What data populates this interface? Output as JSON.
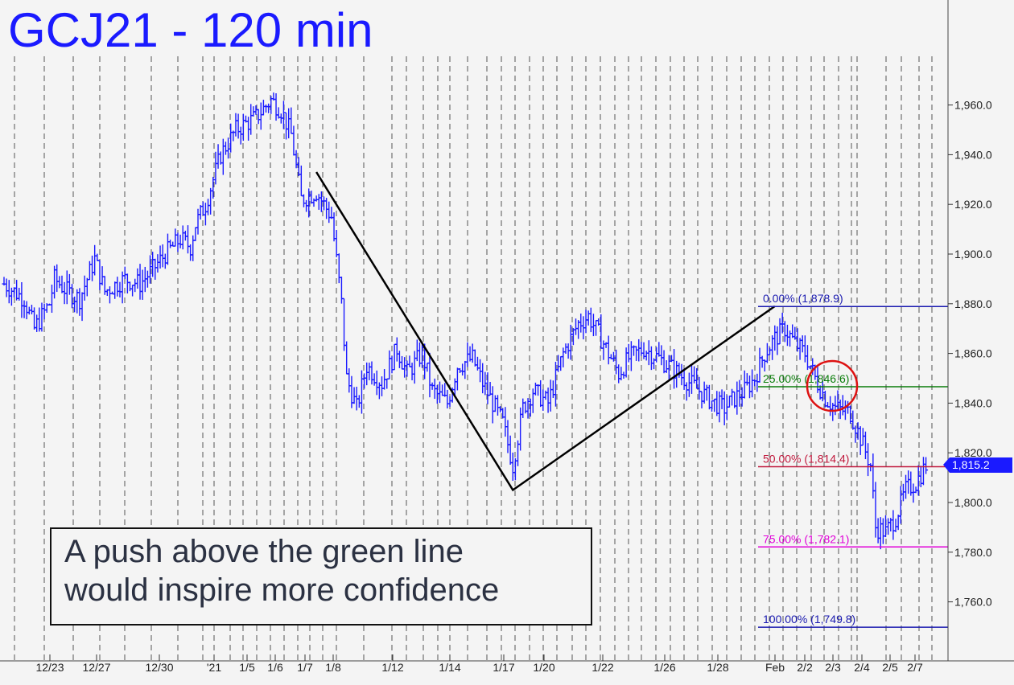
{
  "title": "GCJ21 - 120 min",
  "annotation": {
    "line1": "A push above the green line",
    "line2": "would inspire more confidence"
  },
  "last_price_label": "1,815.2",
  "chart_data": {
    "type": "ohlc_bar",
    "symbol": "GCJ21",
    "interval": "120 min",
    "ylim": [
      1745,
      1972
    ],
    "y_ticks": [
      1760,
      1780,
      1800,
      1820,
      1840,
      1860,
      1880,
      1900,
      1920,
      1940,
      1960
    ],
    "y_tick_labels": [
      "1,760.0",
      "1,780.0",
      "1,800.0",
      "1,820.0",
      "1,840.0",
      "1,860.0",
      "1,880.0",
      "1,900.0",
      "1,920.0",
      "1,940.0",
      "1,960.0"
    ],
    "x_tick_labels": [
      "12/23",
      "12/27",
      "12/30",
      "'21",
      "1/5",
      "1/6",
      "1/7",
      "1/8",
      "1/12",
      "1/14",
      "1/17",
      "1/20",
      "1/22",
      "1/26",
      "1/28",
      "Feb",
      "2/2",
      "2/3",
      "2/4",
      "2/5",
      "2/7"
    ],
    "price_path": [
      [
        0,
        1888
      ],
      [
        8,
        1882
      ],
      [
        12,
        1870
      ],
      [
        18,
        1880
      ],
      [
        20,
        1890
      ],
      [
        25,
        1885
      ],
      [
        30,
        1882
      ],
      [
        36,
        1898
      ],
      [
        40,
        1885
      ],
      [
        48,
        1890
      ],
      [
        54,
        1888
      ],
      [
        60,
        1895
      ],
      [
        64,
        1900
      ],
      [
        70,
        1906
      ],
      [
        74,
        1903
      ],
      [
        76,
        1912
      ],
      [
        80,
        1920
      ],
      [
        86,
        1940
      ],
      [
        92,
        1950
      ],
      [
        100,
        1955
      ],
      [
        106,
        1962
      ],
      [
        110,
        1958
      ],
      [
        114,
        1948
      ],
      [
        118,
        1922
      ],
      [
        124,
        1925
      ],
      [
        130,
        1915
      ],
      [
        134,
        1880
      ],
      [
        136,
        1850
      ],
      [
        140,
        1838
      ],
      [
        144,
        1855
      ],
      [
        150,
        1848
      ],
      [
        156,
        1862
      ],
      [
        160,
        1852
      ],
      [
        166,
        1860
      ],
      [
        170,
        1845
      ],
      [
        176,
        1840
      ],
      [
        180,
        1855
      ],
      [
        186,
        1858
      ],
      [
        190,
        1848
      ],
      [
        194,
        1840
      ],
      [
        198,
        1832
      ],
      [
        202,
        1815
      ],
      [
        206,
        1838
      ],
      [
        210,
        1845
      ],
      [
        216,
        1840
      ],
      [
        222,
        1860
      ],
      [
        228,
        1872
      ],
      [
        232,
        1875
      ],
      [
        236,
        1868
      ],
      [
        240,
        1860
      ],
      [
        244,
        1852
      ],
      [
        248,
        1858
      ],
      [
        254,
        1862
      ],
      [
        260,
        1858
      ],
      [
        264,
        1855
      ],
      [
        270,
        1850
      ],
      [
        276,
        1845
      ],
      [
        282,
        1840
      ],
      [
        286,
        1838
      ],
      [
        290,
        1842
      ],
      [
        294,
        1845
      ],
      [
        298,
        1850
      ],
      [
        302,
        1860
      ],
      [
        306,
        1866
      ],
      [
        310,
        1870
      ],
      [
        314,
        1864
      ],
      [
        318,
        1860
      ],
      [
        322,
        1850
      ],
      [
        326,
        1842
      ],
      [
        330,
        1838
      ],
      [
        336,
        1836
      ],
      [
        340,
        1826
      ],
      [
        344,
        1815
      ],
      [
        346,
        1790
      ],
      [
        350,
        1788
      ],
      [
        354,
        1794
      ],
      [
        358,
        1805
      ],
      [
        362,
        1808
      ],
      [
        366,
        1815
      ]
    ],
    "pattern_line": [
      [
        124,
        1933
      ],
      [
        202,
        1805
      ],
      [
        306,
        1879
      ]
    ],
    "fib_levels": [
      {
        "label": "0.00% (1,878.9)",
        "value": 1878.9,
        "color": "#1a1ab0"
      },
      {
        "label": "25.00% (1,846.6)",
        "value": 1846.6,
        "color": "#0a7d0a"
      },
      {
        "label": "50.00% (1,814.4)",
        "value": 1814.4,
        "color": "#c0183c"
      },
      {
        "label": "75.00% (1,782.1)",
        "value": 1782.1,
        "color": "#e000d8"
      },
      {
        "label": "100.00% (1,749.8)",
        "value": 1749.8,
        "color": "#1a1ab0"
      }
    ],
    "grid": true,
    "colors": {
      "bars": "#1a1aff",
      "pattern": "#000000",
      "marker_circle": "#dd1111",
      "last_price_bg": "#1a1aff",
      "title": "#1a1aff"
    }
  }
}
